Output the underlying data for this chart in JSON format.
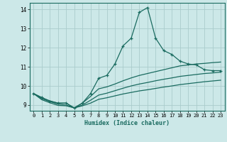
{
  "xlabel": "Humidex (Indice chaleur)",
  "bg_color": "#cce8e8",
  "line_color": "#1a6b60",
  "grid_color": "#aacccc",
  "xlim": [
    -0.5,
    23.5
  ],
  "ylim": [
    8.7,
    14.35
  ],
  "xticks": [
    0,
    1,
    2,
    3,
    4,
    5,
    6,
    7,
    8,
    9,
    10,
    11,
    12,
    13,
    14,
    15,
    16,
    17,
    18,
    19,
    20,
    21,
    22,
    23
  ],
  "yticks": [
    9,
    10,
    11,
    12,
    13,
    14
  ],
  "main_line_x": [
    0,
    1,
    2,
    3,
    4,
    5,
    6,
    7,
    8,
    9,
    10,
    11,
    12,
    13,
    14,
    15,
    16,
    17,
    18,
    19,
    20,
    21,
    22,
    23
  ],
  "main_line_y": [
    9.6,
    9.4,
    9.2,
    9.1,
    9.1,
    8.85,
    9.1,
    9.6,
    10.4,
    10.55,
    11.15,
    12.1,
    12.5,
    13.85,
    14.1,
    12.5,
    11.85,
    11.65,
    11.3,
    11.15,
    11.1,
    10.85,
    10.8,
    10.8
  ],
  "line2_x": [
    0,
    1,
    2,
    3,
    4,
    5,
    6,
    7,
    8,
    9,
    10,
    11,
    12,
    13,
    14,
    15,
    16,
    17,
    18,
    19,
    20,
    21,
    22,
    23
  ],
  "line2_y": [
    9.6,
    9.38,
    9.22,
    9.1,
    9.1,
    8.85,
    9.1,
    9.45,
    9.85,
    9.95,
    10.1,
    10.27,
    10.42,
    10.55,
    10.65,
    10.75,
    10.85,
    10.95,
    11.05,
    11.1,
    11.15,
    11.18,
    11.22,
    11.25
  ],
  "line3_x": [
    0,
    1,
    2,
    3,
    4,
    5,
    6,
    7,
    8,
    9,
    10,
    11,
    12,
    13,
    14,
    15,
    16,
    17,
    18,
    19,
    20,
    21,
    22,
    23
  ],
  "line3_y": [
    9.6,
    9.33,
    9.18,
    9.05,
    9.0,
    8.85,
    9.0,
    9.25,
    9.52,
    9.62,
    9.75,
    9.88,
    10.0,
    10.1,
    10.18,
    10.27,
    10.35,
    10.42,
    10.5,
    10.55,
    10.6,
    10.65,
    10.68,
    10.72
  ],
  "line4_x": [
    0,
    1,
    2,
    3,
    4,
    5,
    6,
    7,
    8,
    9,
    10,
    11,
    12,
    13,
    14,
    15,
    16,
    17,
    18,
    19,
    20,
    21,
    22,
    23
  ],
  "line4_y": [
    9.6,
    9.28,
    9.12,
    8.98,
    8.96,
    8.85,
    8.96,
    9.1,
    9.3,
    9.38,
    9.48,
    9.58,
    9.66,
    9.74,
    9.8,
    9.87,
    9.94,
    10.0,
    10.07,
    10.12,
    10.17,
    10.22,
    10.26,
    10.3
  ]
}
